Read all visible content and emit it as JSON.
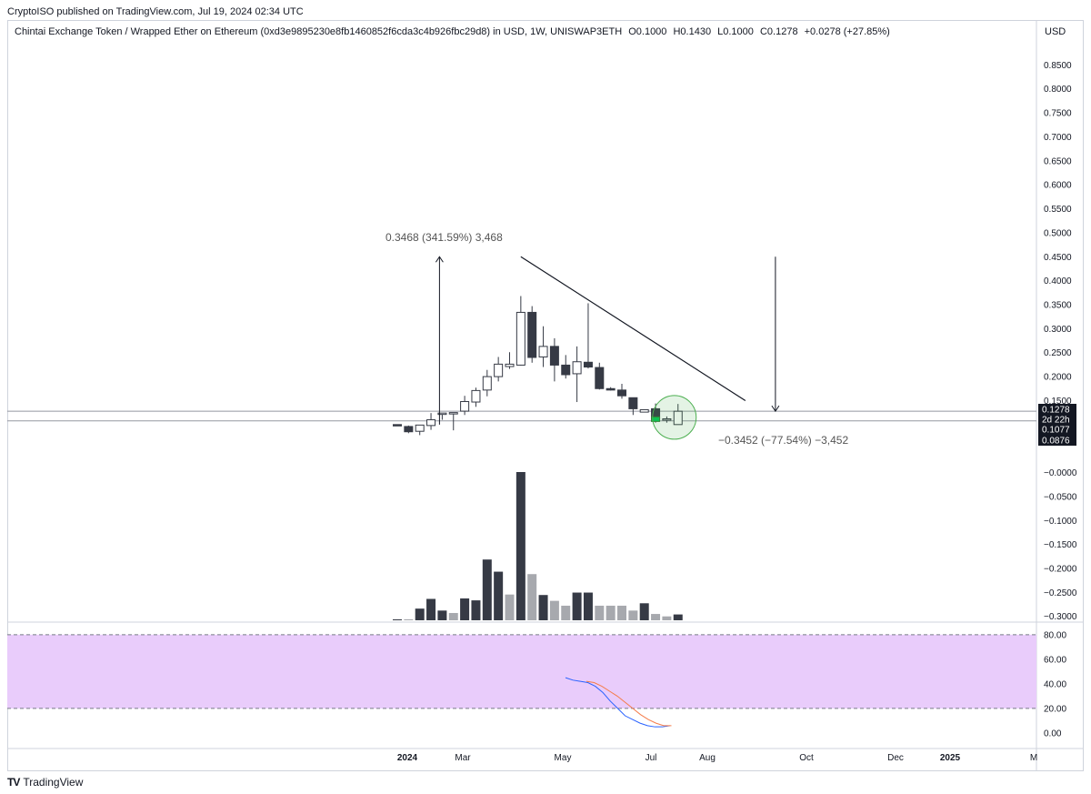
{
  "header": {
    "published_text": "CryptoISO published on TradingView.com, Jul 19, 2024 02:34 UTC"
  },
  "legend": {
    "symbol": "Chintai Exchange Token / Wrapped Ether on Ethereum (0xd3e9895230e8fb1460852f6cda3c4b926fbc29d8) in USD, 1W, UNISWAP3ETH",
    "open": "O0.1000",
    "high": "H0.1430",
    "low": "L0.1000",
    "close": "C0.1278",
    "change": "+0.0278 (+27.85%)"
  },
  "currency_label": "USD",
  "footer": {
    "brand": "TradingView",
    "logo": "TV"
  },
  "price_tags": [
    {
      "label": "0.1278",
      "value": 0.1278,
      "color": "#131722"
    },
    {
      "label": "2d 22h",
      "value": 0.1278,
      "color": "#131722"
    },
    {
      "label": "0.1077",
      "value": 0.1077,
      "color": "#131722"
    },
    {
      "label": "0.0876",
      "value": 0.0876,
      "color": "#131722"
    }
  ],
  "measurements": {
    "up": "0.3468 (341.59%) 3,468",
    "down": "−0.3452 (−77.54%) −3,452"
  },
  "colors": {
    "up": "#ffffff",
    "down": "#363a45",
    "volume_up": "#a7a9ae",
    "volume_down": "#363a45",
    "rsi_band": "#e9ccfb",
    "rsi_line": "#2962ff",
    "rsi_ma": "#f57c4a",
    "highlight": "#4caf50"
  },
  "chart_data": {
    "type": "candlestick",
    "title": "Chintai Exchange Token / Wrapped Ether on Ethereum (0xd3e9895230e8fb1460852f6cda3c4b926fbc29d8) in USD, 1W, UNISWAP3ETH",
    "x_ticks": [
      "2024",
      "Mar",
      "May",
      "Jul",
      "Aug",
      "Oct",
      "Dec",
      "2025",
      "M"
    ],
    "y_ticks": [
      "0.8500",
      "0.8000",
      "0.7500",
      "0.7000",
      "0.6500",
      "0.6000",
      "0.5500",
      "0.5000",
      "0.4500",
      "0.4000",
      "0.3500",
      "0.3000",
      "0.2500",
      "0.2000",
      "0.1500",
      "−0.0000",
      "−0.0500",
      "−0.1000",
      "−0.1500",
      "−0.2000",
      "−0.2500",
      "−0.3000"
    ],
    "y_tick_values": [
      0.85,
      0.8,
      0.75,
      0.7,
      0.65,
      0.6,
      0.55,
      0.5,
      0.45,
      0.4,
      0.35,
      0.3,
      0.25,
      0.2,
      0.15,
      0.0,
      -0.05,
      -0.1,
      -0.15,
      -0.2,
      -0.25,
      -0.3
    ],
    "ylim": [
      -0.31,
      0.9
    ],
    "candles": [
      {
        "o": 0.1,
        "h": 0.1,
        "l": 0.098,
        "c": 0.098
      },
      {
        "o": 0.096,
        "h": 0.098,
        "l": 0.082,
        "c": 0.085
      },
      {
        "o": 0.086,
        "h": 0.099,
        "l": 0.078,
        "c": 0.099
      },
      {
        "o": 0.098,
        "h": 0.124,
        "l": 0.089,
        "c": 0.11
      },
      {
        "o": 0.122,
        "h": 0.123,
        "l": 0.11,
        "c": 0.124
      },
      {
        "o": 0.123,
        "h": 0.125,
        "l": 0.088,
        "c": 0.125
      },
      {
        "o": 0.128,
        "h": 0.16,
        "l": 0.12,
        "c": 0.148
      },
      {
        "o": 0.147,
        "h": 0.177,
        "l": 0.137,
        "c": 0.171
      },
      {
        "o": 0.172,
        "h": 0.214,
        "l": 0.159,
        "c": 0.2
      },
      {
        "o": 0.2,
        "h": 0.241,
        "l": 0.19,
        "c": 0.226
      },
      {
        "o": 0.221,
        "h": 0.251,
        "l": 0.216,
        "c": 0.226
      },
      {
        "o": 0.224,
        "h": 0.368,
        "l": 0.223,
        "c": 0.334
      },
      {
        "o": 0.334,
        "h": 0.347,
        "l": 0.229,
        "c": 0.24
      },
      {
        "o": 0.241,
        "h": 0.305,
        "l": 0.22,
        "c": 0.263
      },
      {
        "o": 0.263,
        "h": 0.28,
        "l": 0.19,
        "c": 0.224
      },
      {
        "o": 0.224,
        "h": 0.245,
        "l": 0.196,
        "c": 0.204
      },
      {
        "o": 0.206,
        "h": 0.263,
        "l": 0.147,
        "c": 0.231
      },
      {
        "o": 0.23,
        "h": 0.353,
        "l": 0.217,
        "c": 0.22
      },
      {
        "o": 0.219,
        "h": 0.229,
        "l": 0.173,
        "c": 0.175
      },
      {
        "o": 0.175,
        "h": 0.178,
        "l": 0.171,
        "c": 0.172
      },
      {
        "o": 0.172,
        "h": 0.185,
        "l": 0.154,
        "c": 0.16
      },
      {
        "o": 0.156,
        "h": 0.156,
        "l": 0.12,
        "c": 0.133
      },
      {
        "o": 0.126,
        "h": 0.131,
        "l": 0.126,
        "c": 0.131
      },
      {
        "o": 0.133,
        "h": 0.144,
        "l": 0.104,
        "c": 0.112
      },
      {
        "o": 0.111,
        "h": 0.117,
        "l": 0.104,
        "c": 0.112
      },
      {
        "o": 0.1,
        "h": 0.143,
        "l": 0.1,
        "c": 0.1278
      }
    ],
    "volume": [
      {
        "v": 1,
        "up": false
      },
      {
        "v": 2,
        "up": true
      },
      {
        "v": 24,
        "up": false
      },
      {
        "v": 44,
        "up": false
      },
      {
        "v": 20,
        "up": false
      },
      {
        "v": 15,
        "up": true
      },
      {
        "v": 45,
        "up": false
      },
      {
        "v": 41,
        "up": false
      },
      {
        "v": 125,
        "up": false
      },
      {
        "v": 100,
        "up": false
      },
      {
        "v": 53,
        "up": true
      },
      {
        "v": 305,
        "up": false
      },
      {
        "v": 95,
        "up": true
      },
      {
        "v": 52,
        "up": false
      },
      {
        "v": 40,
        "up": true
      },
      {
        "v": 30,
        "up": true
      },
      {
        "v": 57,
        "up": false
      },
      {
        "v": 57,
        "up": false
      },
      {
        "v": 30,
        "up": true
      },
      {
        "v": 30,
        "up": true
      },
      {
        "v": 30,
        "up": true
      },
      {
        "v": 20,
        "up": true
      },
      {
        "v": 35,
        "up": false
      },
      {
        "v": 13,
        "up": true
      },
      {
        "v": 8,
        "up": true
      },
      {
        "v": 12,
        "up": false
      }
    ],
    "rsi": {
      "y_ticks": [
        "80.00",
        "60.00",
        "40.00",
        "20.00",
        "0.00"
      ],
      "y_tick_values": [
        80,
        60,
        40,
        20,
        0
      ],
      "band": [
        20,
        80
      ],
      "ylim": [
        -3,
        88
      ],
      "line": [
        45,
        43,
        42,
        41,
        38,
        33,
        26,
        20,
        14,
        11,
        8,
        6,
        5,
        5,
        6
      ],
      "ma": [
        42,
        41,
        38,
        34,
        30,
        25,
        20,
        15,
        11,
        8,
        6,
        6
      ]
    },
    "trendline": {
      "from_index": 11,
      "from_value": 0.45,
      "to_index": 31,
      "to_value": 0.15
    },
    "horizontal_lines": [
      0.1278,
      0.1077
    ],
    "up_measure": {
      "index": 4,
      "from": 0.1,
      "to": 0.45
    },
    "down_measure": {
      "index": 34,
      "from": 0.45,
      "to": 0.1278
    },
    "highlight_index": 24
  }
}
